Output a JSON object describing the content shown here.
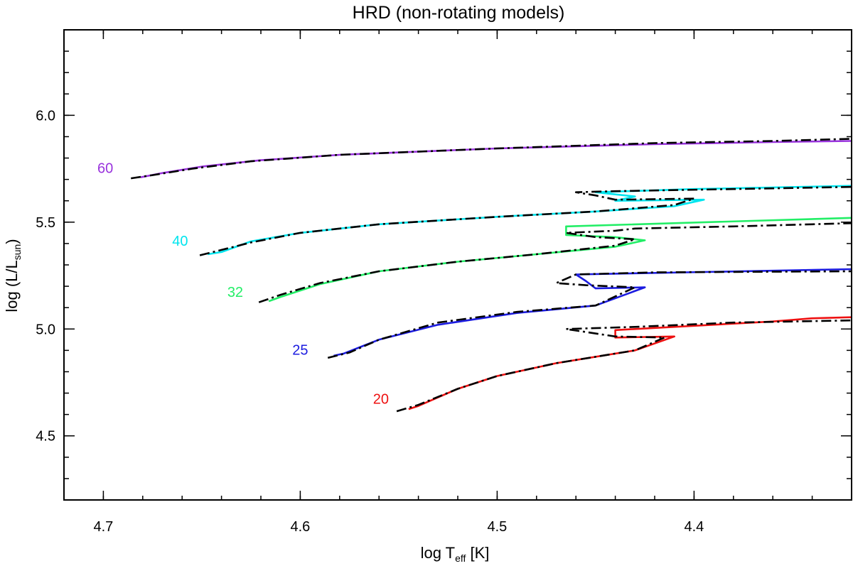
{
  "chart_data": {
    "type": "line",
    "title": "HRD (non-rotating models)",
    "xlabel": {
      "main": "log T",
      "sub": "eff",
      "tail": " [K]"
    },
    "ylabel": {
      "main": "log (L/L",
      "sub": "sun",
      "tail": ")"
    },
    "xlim": [
      4.72,
      4.32
    ],
    "ylim": [
      4.2,
      6.4
    ],
    "x_ticks": [
      4.7,
      4.6,
      4.5,
      4.4
    ],
    "x_tick_labels": [
      "4.7",
      "4.6",
      "4.5",
      "4.4"
    ],
    "x_minor_step": 0.02,
    "y_ticks": [
      4.5,
      5.0,
      5.5,
      6.0
    ],
    "y_tick_labels": [
      "4.5",
      "5.0",
      "5.5",
      "6.0"
    ],
    "y_minor_step": 0.1,
    "grid": false,
    "legend": "none",
    "series": [
      {
        "name": "60",
        "color": "#9933dd",
        "label_pos": [
          4.695,
          5.73
        ],
        "solid": [
          [
            4.681,
            5.71
          ],
          [
            4.67,
            5.73
          ],
          [
            4.65,
            5.76
          ],
          [
            4.62,
            5.79
          ],
          [
            4.58,
            5.815
          ],
          [
            4.5,
            5.845
          ],
          [
            4.42,
            5.865
          ],
          [
            4.36,
            5.875
          ],
          [
            4.32,
            5.88
          ]
        ],
        "dashed": [
          [
            4.686,
            5.705
          ],
          [
            4.675,
            5.72
          ],
          [
            4.655,
            5.75
          ],
          [
            4.625,
            5.785
          ],
          [
            4.58,
            5.815
          ],
          [
            4.5,
            5.845
          ],
          [
            4.42,
            5.87
          ],
          [
            4.36,
            5.88
          ],
          [
            4.32,
            5.89
          ],
          [
            4.34,
            5.9
          ],
          [
            4.39,
            5.91
          ],
          [
            4.4,
            5.915
          ],
          [
            4.32,
            5.915
          ]
        ]
      },
      {
        "name": "40",
        "color": "#00e5ee",
        "label_pos": [
          4.657,
          5.39
        ],
        "solid": [
          [
            4.647,
            5.35
          ],
          [
            4.64,
            5.36
          ],
          [
            4.625,
            5.41
          ],
          [
            4.6,
            5.45
          ],
          [
            4.56,
            5.49
          ],
          [
            4.5,
            5.525
          ],
          [
            4.45,
            5.55
          ],
          [
            4.41,
            5.575
          ],
          [
            4.395,
            5.605
          ],
          [
            4.44,
            5.6
          ],
          [
            4.43,
            5.62
          ],
          [
            4.45,
            5.64
          ],
          [
            4.4,
            5.655
          ],
          [
            4.32,
            5.67
          ]
        ]
      },
      {
        "name": "32",
        "color": "#22ee66",
        "label_pos": [
          4.629,
          5.15
        ],
        "solid": [
          [
            4.616,
            5.13
          ],
          [
            4.61,
            5.15
          ],
          [
            4.59,
            5.21
          ],
          [
            4.56,
            5.27
          ],
          [
            4.52,
            5.315
          ],
          [
            4.48,
            5.35
          ],
          [
            4.44,
            5.385
          ],
          [
            4.425,
            5.415
          ],
          [
            4.44,
            5.43
          ],
          [
            4.465,
            5.44
          ],
          [
            4.465,
            5.48
          ],
          [
            4.32,
            5.52
          ]
        ]
      },
      {
        "name": "25",
        "color": "#1c1ce0",
        "label_pos": [
          4.596,
          4.88
        ],
        "solid": [
          [
            4.583,
            4.875
          ],
          [
            4.578,
            4.885
          ],
          [
            4.56,
            4.95
          ],
          [
            4.53,
            5.02
          ],
          [
            4.49,
            5.075
          ],
          [
            4.45,
            5.11
          ],
          [
            4.425,
            5.195
          ],
          [
            4.45,
            5.19
          ],
          [
            4.455,
            5.225
          ],
          [
            4.46,
            5.255
          ],
          [
            4.32,
            5.28
          ]
        ]
      },
      {
        "name": "20",
        "color": "#ee1111",
        "label_pos": [
          4.555,
          4.65
        ],
        "solid": [
          [
            4.545,
            4.625
          ],
          [
            4.54,
            4.64
          ],
          [
            4.52,
            4.72
          ],
          [
            4.5,
            4.78
          ],
          [
            4.47,
            4.84
          ],
          [
            4.43,
            4.9
          ],
          [
            4.41,
            4.965
          ],
          [
            4.44,
            4.96
          ],
          [
            4.44,
            4.995
          ],
          [
            4.36,
            5.035
          ],
          [
            4.34,
            5.05
          ],
          [
            4.32,
            5.055
          ]
        ]
      }
    ],
    "dashed_tracks": [
      [
        [
          4.686,
          5.705
        ],
        [
          4.675,
          5.72
        ],
        [
          4.655,
          5.75
        ],
        [
          4.625,
          5.785
        ],
        [
          4.58,
          5.815
        ],
        [
          4.5,
          5.845
        ],
        [
          4.42,
          5.87
        ],
        [
          4.36,
          5.88
        ],
        [
          4.32,
          5.89
        ]
      ],
      [
        [
          4.651,
          5.345
        ],
        [
          4.64,
          5.37
        ],
        [
          4.625,
          5.405
        ],
        [
          4.6,
          5.45
        ],
        [
          4.56,
          5.49
        ],
        [
          4.5,
          5.525
        ],
        [
          4.45,
          5.55
        ],
        [
          4.41,
          5.58
        ],
        [
          4.4,
          5.61
        ],
        [
          4.44,
          5.605
        ],
        [
          4.45,
          5.625
        ],
        [
          4.46,
          5.64
        ],
        [
          4.44,
          5.645
        ],
        [
          4.38,
          5.655
        ],
        [
          4.32,
          5.665
        ]
      ],
      [
        [
          4.621,
          5.125
        ],
        [
          4.61,
          5.16
        ],
        [
          4.59,
          5.215
        ],
        [
          4.56,
          5.27
        ],
        [
          4.52,
          5.315
        ],
        [
          4.48,
          5.35
        ],
        [
          4.44,
          5.39
        ],
        [
          4.43,
          5.42
        ],
        [
          4.45,
          5.43
        ],
        [
          4.465,
          5.45
        ],
        [
          4.44,
          5.46
        ],
        [
          4.43,
          5.47
        ],
        [
          4.38,
          5.48
        ],
        [
          4.32,
          5.495
        ]
      ],
      [
        [
          4.586,
          4.865
        ],
        [
          4.575,
          4.89
        ],
        [
          4.56,
          4.95
        ],
        [
          4.53,
          5.03
        ],
        [
          4.49,
          5.08
        ],
        [
          4.45,
          5.11
        ],
        [
          4.43,
          5.195
        ],
        [
          4.455,
          5.205
        ],
        [
          4.47,
          5.215
        ],
        [
          4.46,
          5.255
        ],
        [
          4.42,
          5.265
        ],
        [
          4.32,
          5.27
        ]
      ],
      [
        [
          4.551,
          4.615
        ],
        [
          4.54,
          4.645
        ],
        [
          4.52,
          4.72
        ],
        [
          4.5,
          4.78
        ],
        [
          4.47,
          4.84
        ],
        [
          4.43,
          4.9
        ],
        [
          4.415,
          4.96
        ],
        [
          4.44,
          4.965
        ],
        [
          4.465,
          5.0
        ],
        [
          4.43,
          5.01
        ],
        [
          4.38,
          5.03
        ],
        [
          4.32,
          5.04
        ]
      ]
    ]
  }
}
